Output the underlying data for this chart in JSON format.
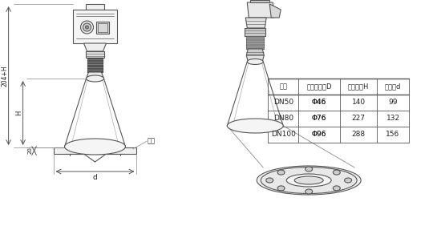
{
  "bg_color": "#ffffff",
  "table_headers": [
    "法兰",
    "喇叭口直径D",
    "喇叭高度H",
    "四氟盘d"
  ],
  "table_rows": [
    [
      "DN50",
      "Φ46",
      "140",
      "99"
    ],
    [
      "DN80",
      "Φ76",
      "227",
      "132"
    ],
    [
      "DN100",
      "Φ96",
      "288",
      "156"
    ]
  ],
  "line_color": "#555555",
  "label_204H": "204+H",
  "label_H": "H",
  "label_20": "20",
  "label_d": "d",
  "label_falan": "法兰"
}
